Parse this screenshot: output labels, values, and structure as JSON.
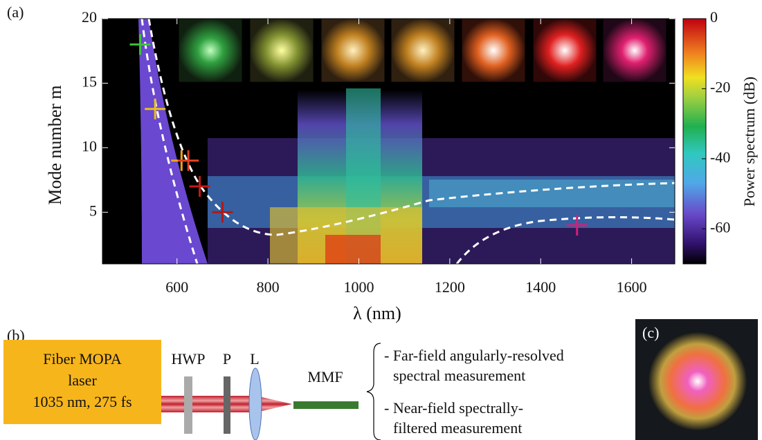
{
  "chart_data": {
    "type": "heatmap",
    "panel": "(a)",
    "xlabel": "λ (nm)",
    "ylabel": "Mode number m",
    "colorbar_label": "Power spectrum (dB)",
    "xlim": [
      436,
      1695
    ],
    "xticks": [
      600,
      800,
      1000,
      1200,
      1400,
      1600
    ],
    "ylim": [
      1,
      20
    ],
    "yticks": [
      5,
      10,
      15,
      20
    ],
    "clim": [
      -70,
      0
    ],
    "cticks": [
      0,
      -20,
      -40,
      -60
    ],
    "markers": {
      "x": [
        519,
        552,
        610,
        625,
        650,
        700,
        1480
      ],
      "y": [
        18,
        13,
        9,
        9,
        7,
        5,
        4
      ],
      "colors": [
        "#3cc03c",
        "#e8c020",
        "#f0a020",
        "#e04020",
        "#c81818",
        "#b01818",
        "#d0207a"
      ]
    }
  },
  "schematic": {
    "panel": "(b)",
    "source": [
      "Fiber MOPA",
      "laser",
      "1035 nm, 275 fs"
    ],
    "components": [
      "HWP",
      "P",
      "L",
      "MMF"
    ],
    "outputs": [
      "- Far-field angularly-resolved",
      "spectral measurement",
      "- Near-field spectrally-",
      "filtered measurement"
    ]
  },
  "photo": {
    "panel": "(c)"
  }
}
